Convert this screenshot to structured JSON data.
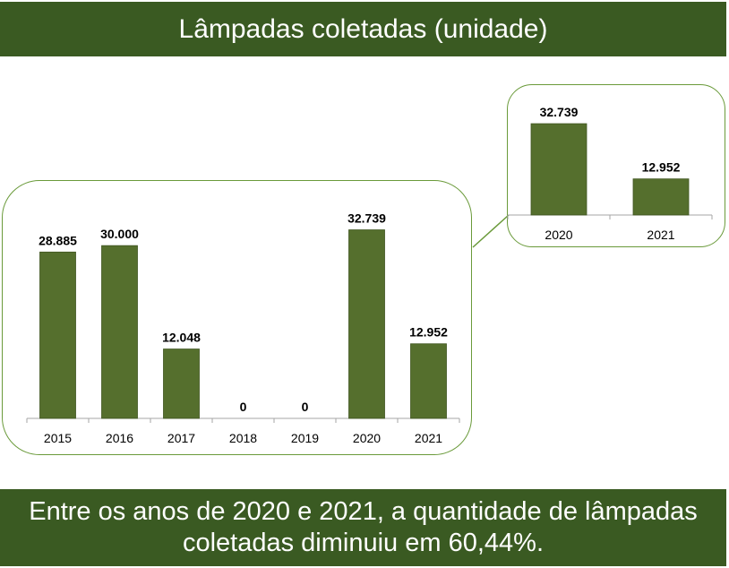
{
  "header": {
    "title": "Lâmpadas coletadas (unidade)"
  },
  "footer": {
    "text_line1": "Entre os anos de 2020 e 2021, a quantidade de lâmpadas",
    "text_line2": "coletadas diminuiu em 60,44%."
  },
  "colors": {
    "banner": "#3a5a22",
    "bar": "#556f2d",
    "panel_border": "#6a9a3a"
  },
  "chart_data": [
    {
      "type": "bar",
      "title": "",
      "categories": [
        "2015",
        "2016",
        "2017",
        "2018",
        "2019",
        "2020",
        "2021"
      ],
      "values": [
        28885,
        30000,
        12048,
        0,
        0,
        32739,
        12952
      ],
      "value_labels": [
        "28.885",
        "30.000",
        "12.048",
        "0",
        "0",
        "32.739",
        "12.952"
      ],
      "ylim": [
        0,
        35000
      ],
      "grid": false
    },
    {
      "type": "bar",
      "title": "",
      "categories": [
        "2020",
        "2021"
      ],
      "values": [
        32739,
        12952
      ],
      "value_labels": [
        "32.739",
        "12.952"
      ],
      "ylim": [
        0,
        35000
      ],
      "grid": false
    }
  ]
}
